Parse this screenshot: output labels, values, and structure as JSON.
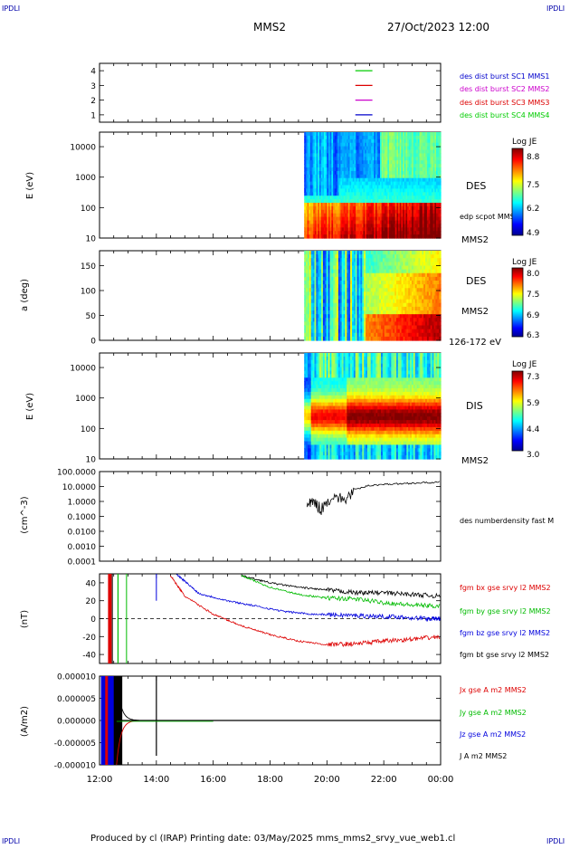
{
  "header": {
    "corner_label": "IPDLI",
    "spacecraft": "MMS2",
    "datetime": "27/Oct/2023 12:00"
  },
  "footer": {
    "text": "Produced by cl (IRAP)   Printing date: 03/May/2025   mms_mms2_srvy_vue_web1.cl"
  },
  "time_axis": {
    "ticks": [
      "12:00",
      "14:00",
      "16:00",
      "18:00",
      "20:00",
      "22:00",
      "00:00"
    ],
    "range_hours": [
      12,
      24
    ]
  },
  "chart_data": [
    {
      "panel": "burst-coverage",
      "type": "line",
      "y_ticks": [
        "4",
        "3",
        "2",
        "1"
      ],
      "ylim": [
        0.5,
        4.5
      ],
      "legend": [
        {
          "label": "des dist burst SC1 MMS1",
          "color": "#0000cc"
        },
        {
          "label": "des dist burst SC2 MMS2",
          "color": "#cc00cc"
        },
        {
          "label": "des dist burst SC3 MMS3",
          "color": "#dd0000"
        },
        {
          "label": "des dist burst SC4 MMS4",
          "color": "#00cc00"
        }
      ],
      "segments": [
        {
          "sc": 4,
          "start": 21.0,
          "end": 21.6
        },
        {
          "sc": 3,
          "start": 21.0,
          "end": 21.6
        },
        {
          "sc": 2,
          "start": 21.0,
          "end": 21.6
        },
        {
          "sc": 1,
          "start": 21.0,
          "end": 21.6
        }
      ]
    },
    {
      "panel": "electron-energy-spectrogram",
      "type": "heatmap",
      "ylabel": "E (eV)",
      "y_ticks": [
        "10000",
        "1000",
        "100",
        "10"
      ],
      "ylim": [
        10,
        30000
      ],
      "log_scale": true,
      "instrument": "DES",
      "sub_label": "MMS2",
      "overlay_label": "edp scpot MMS2",
      "colorbar": {
        "title": "Log JE",
        "ticks": [
          "8.8",
          "7.5",
          "6.2",
          "4.9"
        ],
        "range": [
          4.9,
          8.8
        ]
      },
      "data_start": 19.2
    },
    {
      "panel": "electron-pitch-angle",
      "type": "heatmap",
      "ylabel": "a (deg)",
      "y_ticks": [
        "150",
        "100",
        "50",
        "0"
      ],
      "ylim": [
        0,
        180
      ],
      "instrument": "DES",
      "sub_label": "MMS2",
      "energy_band": "126-172 eV",
      "colorbar": {
        "title": "Log JE",
        "ticks": [
          "8.0",
          "7.5",
          "6.9",
          "6.3"
        ],
        "range": [
          6.3,
          8.0
        ]
      },
      "data_start": 19.2
    },
    {
      "panel": "ion-energy-spectrogram",
      "type": "heatmap",
      "ylabel": "E (eV)",
      "y_ticks": [
        "10000",
        "1000",
        "100",
        "10"
      ],
      "ylim": [
        10,
        30000
      ],
      "log_scale": true,
      "instrument": "DIS",
      "sub_label": "MMS2",
      "colorbar": {
        "title": "Log JE",
        "ticks": [
          "7.3",
          "5.9",
          "4.4",
          "3.0"
        ],
        "range": [
          3.0,
          7.3
        ]
      },
      "data_start": 19.2
    },
    {
      "panel": "number-density",
      "type": "line",
      "ylabel": "(cm^-3)",
      "y_ticks": [
        "100.0000",
        "10.0000",
        "1.0000",
        "0.1000",
        "0.0100",
        "0.0010",
        "0.0001"
      ],
      "ylim": [
        0.0001,
        100
      ],
      "log_scale": true,
      "legend": [
        {
          "label": "des numberdensity fast M",
          "color": "#000000"
        }
      ],
      "series": [
        {
          "name": "des numberdensity fast M",
          "x": [
            19.3,
            19.5,
            19.8,
            20.2,
            20.6,
            21.0,
            21.5,
            22.0,
            22.5,
            23.0,
            23.5,
            24.0
          ],
          "y": [
            0.4,
            1.0,
            0.3,
            2.5,
            1.2,
            6.0,
            12.0,
            14.0,
            15.0,
            17.0,
            18.0,
            20.0
          ]
        }
      ]
    },
    {
      "panel": "magnetic-field",
      "type": "line",
      "ylabel": "(nT)",
      "y_ticks": [
        "40",
        "20",
        "0",
        "-20",
        "-40"
      ],
      "ylim": [
        -50,
        50
      ],
      "legend": [
        {
          "label": "fgm bx gse srvy l2 MMS2",
          "color": "#dd0000"
        },
        {
          "label": "fgm by gse srvy l2 MMS2",
          "color": "#00bb00"
        },
        {
          "label": "fgm bz gse srvy l2 MMS2",
          "color": "#0000dd"
        },
        {
          "label": "fgm bt gse srvy l2 MMS2",
          "color": "#000000"
        }
      ],
      "series": [
        {
          "name": "fgm bt gse srvy l2 MMS2",
          "x": [
            17.0,
            18.0,
            19.0,
            20.0,
            21.0,
            22.0,
            23.0,
            24.0
          ],
          "y": [
            48,
            40,
            35,
            32,
            29,
            29,
            27,
            25
          ]
        },
        {
          "name": "fgm by gse srvy l2 MMS2",
          "x": [
            17.0,
            18.0,
            19.0,
            20.0,
            21.0,
            22.0,
            23.0,
            24.0
          ],
          "y": [
            48,
            35,
            27,
            23,
            22,
            18,
            15,
            14
          ]
        },
        {
          "name": "fgm bz gse srvy l2 MMS2",
          "x": [
            14.7,
            15.5,
            16.5,
            17.5,
            18.5,
            19.5,
            20.5,
            21.5,
            22.5,
            23.5,
            24.0
          ],
          "y": [
            50,
            28,
            20,
            14,
            8,
            5,
            4,
            3,
            2,
            0,
            0
          ]
        },
        {
          "name": "fgm bx gse srvy l2 MMS2",
          "x": [
            14.5,
            15.0,
            16.0,
            17.0,
            18.0,
            19.0,
            20.0,
            21.0,
            22.0,
            23.0,
            24.0
          ],
          "y": [
            48,
            25,
            5,
            -8,
            -18,
            -25,
            -29,
            -28,
            -25,
            -23,
            -20
          ]
        }
      ]
    },
    {
      "panel": "current-density",
      "type": "line",
      "ylabel": "(A/m2)",
      "y_ticks": [
        "0.000010",
        "0.000005",
        "0.000000",
        "-0.000005",
        "-0.000010"
      ],
      "ylim": [
        -1e-05,
        1e-05
      ],
      "legend": [
        {
          "label": "Jx gse A m2 MMS2",
          "color": "#dd0000"
        },
        {
          "label": "Jy gse A m2 MMS2",
          "color": "#00bb00"
        },
        {
          "label": "Jz gse A m2 MMS2",
          "color": "#0000dd"
        },
        {
          "label": "J A m2 MMS2",
          "color": "#000000"
        }
      ]
    }
  ]
}
